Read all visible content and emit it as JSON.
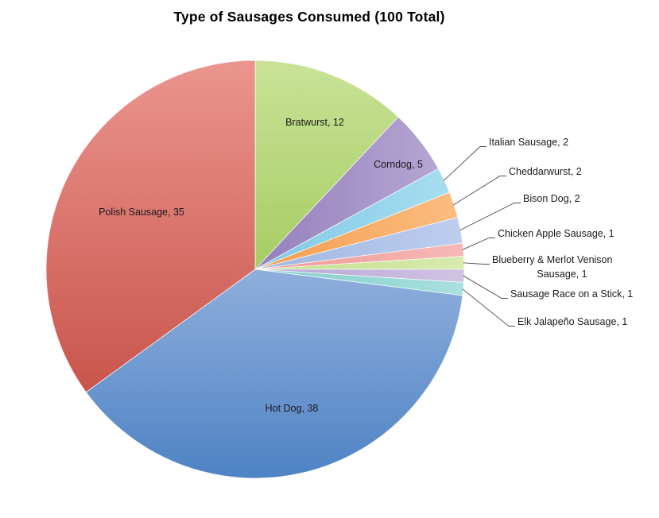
{
  "chart_data": {
    "type": "pie",
    "title": "Type of Sausages Consumed (100 Total)",
    "total": 100,
    "legend": "none",
    "direction": "clockwise",
    "start_angle_deg": 0,
    "slices": [
      {
        "label": "Bratwurst",
        "value": 12,
        "color_light": "#C9E298",
        "color_dark": "#A6CD62",
        "label_placement": "inside"
      },
      {
        "label": "Corndog",
        "value": 5,
        "color_light": "#B5A6D2",
        "color_dark": "#9480BC",
        "label_placement": "inside"
      },
      {
        "label": "Italian Sausage",
        "value": 2,
        "color_light": "#A7DDF0",
        "color_dark": "#7FC8E4",
        "label_placement": "callout"
      },
      {
        "label": "Cheddarwurst",
        "value": 2,
        "color_light": "#FBBD80",
        "color_dark": "#F49C4E",
        "label_placement": "callout"
      },
      {
        "label": "Bison Dog",
        "value": 2,
        "color_light": "#BDCEEE",
        "color_dark": "#9FB6E2",
        "label_placement": "callout"
      },
      {
        "label": "Chicken Apple Sausage",
        "value": 1,
        "color_light": "#F6B9B6",
        "color_dark": "#EE9793",
        "label_placement": "callout"
      },
      {
        "label": "Blueberry & Merlot Venison Sausage",
        "value": 1,
        "color_light": "#D6EBAD",
        "color_dark": "#C2DF8D",
        "label_placement": "callout"
      },
      {
        "label": "Sausage Race on a Stick",
        "value": 1,
        "color_light": "#CFC3E3",
        "color_dark": "#B7A5D3",
        "label_placement": "callout"
      },
      {
        "label": "Elk Jalapeño Sausage",
        "value": 1,
        "color_light": "#A8E0DE",
        "color_dark": "#82CECC",
        "label_placement": "callout"
      },
      {
        "label": "Hot Dog",
        "value": 38,
        "color_light": "#8FAEDC",
        "color_dark": "#4E83C4",
        "label_placement": "inside"
      },
      {
        "label": "Polish Sausage",
        "value": 35,
        "color_light": "#EA958E",
        "color_dark": "#C9554C",
        "label_placement": "inside"
      }
    ]
  },
  "style": {
    "background": "#FFFFFF",
    "title_color": "#000000",
    "label_text_color": "#1A1A1A",
    "leader_line_color": "#4D4D4D",
    "slice_border_color": "#FFFFFF"
  }
}
